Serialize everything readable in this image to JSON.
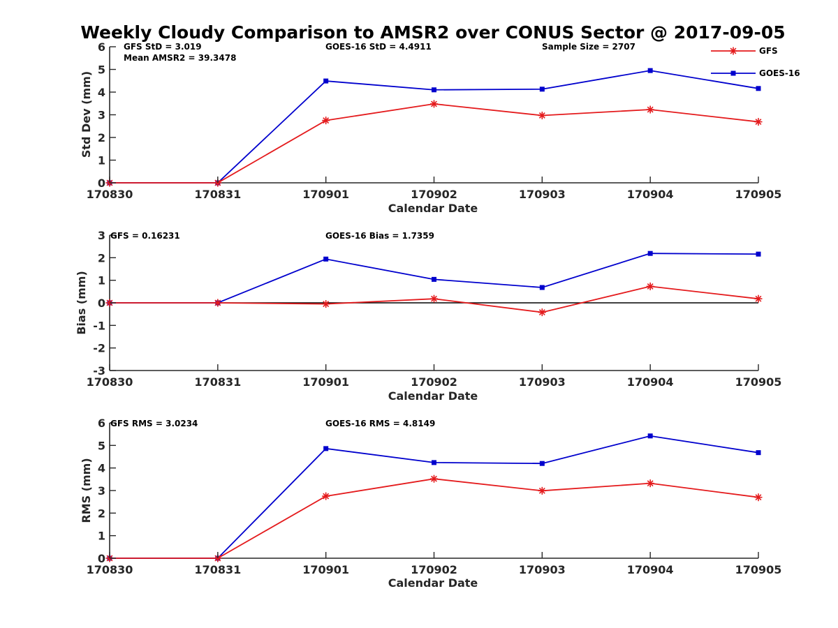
{
  "figure_title": "Weekly Cloudy Comparison to AMSR2 over CONUS Sector @ 2017-09-05",
  "legend": [
    {
      "name": "GFS",
      "color": "#e41a1c",
      "marker": "asterisk"
    },
    {
      "name": "GOES-16",
      "color": "#0000cd",
      "marker": "square"
    }
  ],
  "chart_data": [
    {
      "type": "line",
      "xlabel": "Calendar Date",
      "ylabel": "Std Dev (mm)",
      "ylim": [
        0,
        6
      ],
      "yticks": [
        0,
        1,
        2,
        3,
        4,
        5,
        6
      ],
      "categories": [
        "170830",
        "170831",
        "170901",
        "170902",
        "170903",
        "170904",
        "170905"
      ],
      "annotations": [
        "GFS StD = 3.019",
        "Mean AMSR2 = 39.3478",
        "GOES-16 StD = 4.4911",
        "Sample Size = 2707"
      ],
      "series": [
        {
          "name": "GFS",
          "values": [
            0,
            0,
            2.75,
            3.48,
            2.97,
            3.23,
            2.69
          ]
        },
        {
          "name": "GOES-16",
          "values": [
            0,
            0,
            4.49,
            4.1,
            4.13,
            4.95,
            4.16
          ]
        }
      ]
    },
    {
      "type": "line",
      "xlabel": "Calendar Date",
      "ylabel": "Bias (mm)",
      "ylim": [
        -3,
        3
      ],
      "yticks": [
        -3,
        -2,
        -1,
        0,
        1,
        2,
        3
      ],
      "zero_line": true,
      "categories": [
        "170830",
        "170831",
        "170901",
        "170902",
        "170903",
        "170904",
        "170905"
      ],
      "annotations": [
        "GFS = 0.16231",
        "GOES-16 Bias  = 1.7359"
      ],
      "series": [
        {
          "name": "GFS",
          "values": [
            0,
            0,
            -0.05,
            0.18,
            -0.42,
            0.73,
            0.18
          ]
        },
        {
          "name": "GOES-16",
          "values": [
            0,
            0,
            1.94,
            1.04,
            0.68,
            2.19,
            2.16
          ]
        }
      ]
    },
    {
      "type": "line",
      "xlabel": "Calendar Date",
      "ylabel": "RMS (mm)",
      "ylim": [
        0,
        6
      ],
      "yticks": [
        0,
        1,
        2,
        3,
        4,
        5,
        6
      ],
      "categories": [
        "170830",
        "170831",
        "170901",
        "170902",
        "170903",
        "170904",
        "170905"
      ],
      "annotations": [
        "GFS RMS = 3.0234",
        "GOES-16 RMS = 4.8149"
      ],
      "series": [
        {
          "name": "GFS",
          "values": [
            0,
            0,
            2.75,
            3.52,
            2.99,
            3.32,
            2.7
          ]
        },
        {
          "name": "GOES-16",
          "values": [
            0,
            0,
            4.86,
            4.24,
            4.2,
            5.42,
            4.68
          ]
        }
      ]
    }
  ]
}
